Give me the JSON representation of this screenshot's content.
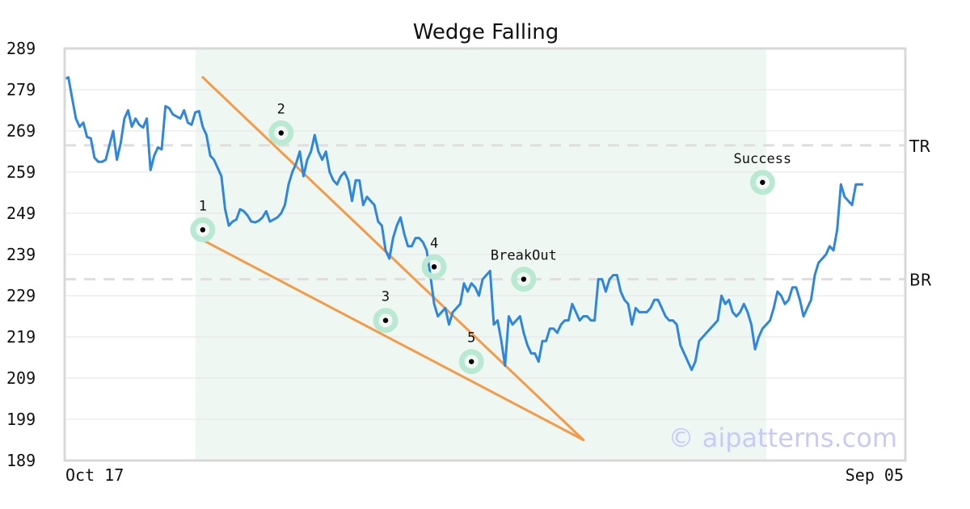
{
  "chart_data": {
    "type": "line",
    "title": "Wedge Falling",
    "xlabel": "",
    "ylabel": "",
    "x_tick_labels": [
      "Oct 17",
      "Sep 05"
    ],
    "y_ticks": [
      189,
      199,
      209,
      219,
      229,
      239,
      249,
      259,
      269,
      279,
      289
    ],
    "ylim": [
      189,
      289
    ],
    "grid": "horizontal",
    "highlight_range": [
      37,
      188
    ],
    "series": [
      {
        "values": [
          281.6,
          282,
          277,
          272,
          270,
          271,
          267.5,
          267.2,
          262.5,
          261.5,
          261.5,
          262,
          265.5,
          269,
          262,
          266,
          272,
          274,
          270,
          272,
          270.5,
          269.8,
          272,
          259.5,
          263,
          265,
          264.5,
          275,
          274.5,
          273,
          272.5,
          272,
          274,
          271,
          270.5,
          273.5,
          273.8,
          270,
          268,
          263,
          262,
          260,
          258,
          250,
          246,
          247,
          247.5,
          250,
          249.5,
          248.5,
          247,
          246.8,
          247.2,
          248,
          249.5,
          247,
          247.5,
          248,
          249,
          251,
          256,
          259,
          261,
          264,
          258,
          262,
          264,
          268,
          264,
          262,
          264,
          259,
          257,
          256,
          258,
          259,
          257,
          252,
          257,
          257,
          251,
          253,
          252,
          251,
          247,
          246,
          240,
          238,
          243,
          246,
          248,
          244,
          241,
          241,
          243,
          243,
          242,
          240,
          234,
          227,
          224,
          225,
          226,
          222,
          225,
          226,
          227,
          232,
          230,
          232,
          231,
          229,
          233,
          234,
          235,
          222,
          223,
          218,
          212,
          224,
          222,
          223,
          224,
          220,
          217,
          215,
          215,
          213,
          218,
          218,
          221,
          221,
          220,
          222,
          223,
          223,
          227,
          225,
          223,
          224,
          224,
          223,
          223,
          233,
          233,
          230,
          233,
          234,
          234,
          230,
          228,
          227,
          222,
          226,
          225,
          225,
          225,
          226,
          228,
          228,
          226,
          224,
          223,
          223,
          222,
          217,
          215,
          213,
          211,
          213,
          218,
          219,
          220,
          221,
          222,
          223,
          229,
          227,
          228,
          225,
          224,
          225,
          227,
          225,
          222,
          216,
          219,
          221,
          222,
          223,
          226,
          230,
          229,
          227,
          228,
          231,
          231,
          228,
          224,
          226,
          228,
          234,
          237,
          238,
          239,
          241,
          240,
          245,
          256,
          253,
          252,
          251,
          256,
          256,
          256
        ]
      }
    ],
    "reference_lines": [
      {
        "label": "TR",
        "value": 265.5
      },
      {
        "label": "BR",
        "value": 233
      }
    ],
    "trend_lines": [
      {
        "name": "upper",
        "points": [
          [
            37,
            282
          ],
          [
            139,
            194
          ]
        ]
      },
      {
        "name": "lower",
        "points": [
          [
            37,
            242.5
          ],
          [
            139,
            194
          ]
        ]
      }
    ],
    "annotated_points": [
      {
        "label": "1",
        "x": 37,
        "y": 245
      },
      {
        "label": "2",
        "x": 58,
        "y": 268.5
      },
      {
        "label": "3",
        "x": 86,
        "y": 223
      },
      {
        "label": "4",
        "x": 99,
        "y": 236
      },
      {
        "label": "5",
        "x": 109,
        "y": 213
      },
      {
        "label": "BreakOut",
        "x": 123,
        "y": 233
      },
      {
        "label": "Success",
        "x": 187,
        "y": 256.5
      }
    ],
    "watermark": "© aipatterns.com",
    "colors": {
      "line": "#2f86dd",
      "trend": "#f59a46",
      "marker_ring": "#b9e9d3",
      "highlight": "#eff7f3",
      "grid": "#e3e3e3",
      "reference": "#dedede",
      "frame": "#d8d8d8"
    }
  }
}
